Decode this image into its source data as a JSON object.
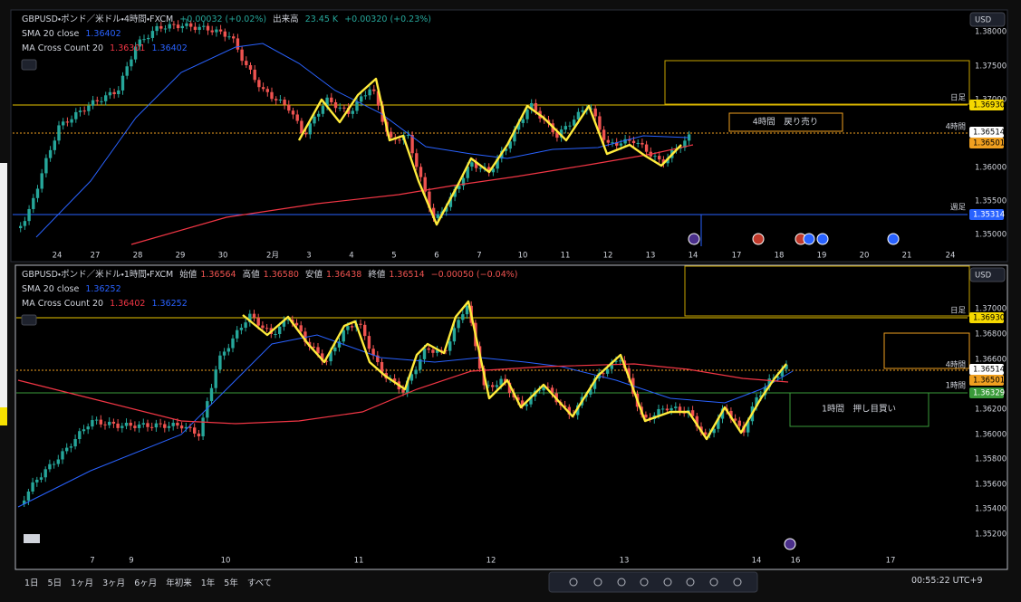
{
  "top_panel": {
    "symbol": "GBPUSD・ポンド／米ドル・4時間・FXCM",
    "change": "+0.00032 (+0.02%)",
    "volume_label": "出来高",
    "volume": "23.45 K",
    "volume_change": "+0.00320 (+0.23%)",
    "indicators": [
      {
        "name": "SMA 20 close",
        "values": [
          "1.36402"
        ]
      },
      {
        "name": "MA Cross Count 20",
        "values": [
          "1.36301",
          "1.36402"
        ]
      }
    ],
    "currency": "USD",
    "price_axis": [
      "1.38000",
      "1.37500",
      "1.37000",
      "1.36000",
      "1.35500",
      "1.35000"
    ],
    "line_labels": [
      "日足",
      "4時間",
      "週足"
    ],
    "price_badges": [
      "1.36930",
      "1.36514",
      "1.36501",
      "1.35314"
    ],
    "time_axis": [
      "24",
      "27",
      "28",
      "29",
      "30",
      "2月",
      "3",
      "4",
      "5",
      "6",
      "7",
      "10",
      "11",
      "12",
      "13",
      "14",
      "17",
      "18",
      "19",
      "20",
      "21",
      "24"
    ],
    "annotation": "4時間　戻り売り"
  },
  "bottom_panel": {
    "symbol": "GBPUSD・ポンド／米ドル・1時間・FXCM",
    "ohlc": [
      {
        "label": "始値",
        "value": "1.36564"
      },
      {
        "label": "高値",
        "value": "1.36580"
      },
      {
        "label": "安値",
        "value": "1.36438"
      },
      {
        "label": "終値",
        "value": "1.36514"
      }
    ],
    "change": "−0.00050 (−0.04%)",
    "indicators": [
      {
        "name": "SMA 20 close",
        "values": [
          "1.36252"
        ]
      },
      {
        "name": "MA Cross Count 20",
        "values": [
          "1.36402",
          "1.36252"
        ]
      }
    ],
    "currency": "USD",
    "price_axis": [
      "1.37000",
      "1.36800",
      "1.36600",
      "1.36200",
      "1.36000",
      "1.35800",
      "1.35600",
      "1.35400",
      "1.35200"
    ],
    "line_labels": [
      "日足",
      "4時間",
      "1時間"
    ],
    "price_badges": [
      "1.36930",
      "1.36514",
      "1.36501",
      "1.36329"
    ],
    "time_axis": [
      "7",
      "9",
      "10",
      "11",
      "12",
      "13",
      "14",
      "16",
      "17"
    ],
    "annotation": "1時間　押し目買い"
  },
  "toolbar": {
    "ranges": [
      "1日",
      "5日",
      "1ヶ月",
      "3ヶ月",
      "6ヶ月",
      "年初来",
      "1年",
      "5年",
      "すべて"
    ],
    "clock": "00:55:22 UTC+9"
  }
}
